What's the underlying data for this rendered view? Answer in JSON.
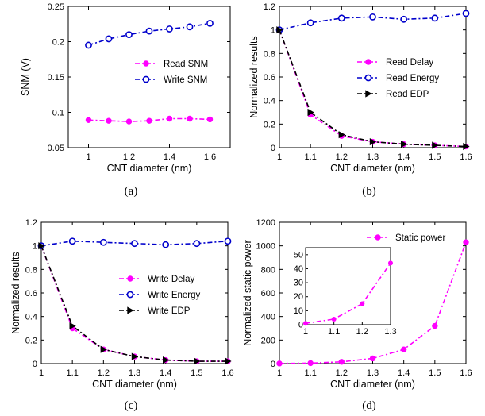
{
  "chart_data": [
    {
      "type": "line",
      "caption": "(a)",
      "xlabel": "CNT diameter (nm)",
      "ylabel": "SNM (V)",
      "xlim": [
        0.9,
        1.7
      ],
      "ylim": [
        0.05,
        0.25
      ],
      "xticks": [
        1,
        1.2,
        1.4,
        1.6
      ],
      "yticks": [
        0.05,
        0.1,
        0.15,
        0.2,
        0.25
      ],
      "ytick_labels": [
        "0.05",
        "0.1",
        "0.15",
        "0.2",
        "0.25"
      ],
      "grid": false,
      "legend": "center-right",
      "x": [
        1.0,
        1.1,
        1.2,
        1.3,
        1.4,
        1.5,
        1.6
      ],
      "series": [
        {
          "name": "Read SNM",
          "color": "#ff00ff",
          "marker": "dot",
          "values": [
            0.089,
            0.088,
            0.087,
            0.088,
            0.091,
            0.091,
            0.09
          ]
        },
        {
          "name": "Write SNM",
          "color": "#0000cc",
          "marker": "circle",
          "values": [
            0.195,
            0.204,
            0.21,
            0.215,
            0.218,
            0.221,
            0.226
          ]
        }
      ]
    },
    {
      "type": "line",
      "caption": "(b)",
      "xlabel": "CNT diameter (nm)",
      "ylabel": "Normalized results",
      "xlim": [
        1.0,
        1.6
      ],
      "ylim": [
        0,
        1.2
      ],
      "xticks": [
        1,
        1.1,
        1.2,
        1.3,
        1.4,
        1.5,
        1.6
      ],
      "yticks": [
        0,
        0.2,
        0.4,
        0.6,
        0.8,
        1,
        1.2
      ],
      "ytick_labels": [
        "0",
        "0.2",
        "0.4",
        "0.6",
        "0.8",
        "1",
        "1.2"
      ],
      "grid": false,
      "legend": "center-right",
      "x": [
        1.0,
        1.1,
        1.2,
        1.3,
        1.4,
        1.5,
        1.6
      ],
      "series": [
        {
          "name": "Read Delay",
          "color": "#ff00ff",
          "marker": "dot",
          "values": [
            1.0,
            0.28,
            0.1,
            0.05,
            0.03,
            0.02,
            0.01
          ]
        },
        {
          "name": "Read Energy",
          "color": "#0000cc",
          "marker": "circle",
          "values": [
            1.0,
            1.06,
            1.1,
            1.11,
            1.09,
            1.1,
            1.14
          ]
        },
        {
          "name": "Read EDP",
          "color": "#000000",
          "marker": "triangle",
          "values": [
            1.0,
            0.3,
            0.11,
            0.05,
            0.03,
            0.02,
            0.01
          ]
        }
      ]
    },
    {
      "type": "line",
      "caption": "(c)",
      "xlabel": "CNT diameter (nm)",
      "ylabel": "Normalized results",
      "xlim": [
        1.0,
        1.6
      ],
      "ylim": [
        0,
        1.2
      ],
      "xticks": [
        1,
        1.1,
        1.2,
        1.3,
        1.4,
        1.5,
        1.6
      ],
      "yticks": [
        0,
        0.2,
        0.4,
        0.6,
        0.8,
        1,
        1.2
      ],
      "ytick_labels": [
        "0",
        "0.2",
        "0.4",
        "0.6",
        "0.8",
        "1",
        "1.2"
      ],
      "grid": false,
      "legend": "center-right",
      "x": [
        1.0,
        1.1,
        1.2,
        1.3,
        1.4,
        1.5,
        1.6
      ],
      "series": [
        {
          "name": "Write Delay",
          "color": "#ff00ff",
          "marker": "dot",
          "values": [
            1.0,
            0.3,
            0.12,
            0.06,
            0.03,
            0.02,
            0.02
          ]
        },
        {
          "name": "Write Energy",
          "color": "#0000cc",
          "marker": "circle",
          "values": [
            1.0,
            1.04,
            1.03,
            1.02,
            1.01,
            1.02,
            1.04
          ]
        },
        {
          "name": "Write EDP",
          "color": "#000000",
          "marker": "triangle",
          "values": [
            1.0,
            0.32,
            0.12,
            0.06,
            0.03,
            0.02,
            0.02
          ]
        }
      ]
    },
    {
      "type": "line",
      "caption": "(d)",
      "xlabel": "CNT diameter (nm)",
      "ylabel": "Normalized static power",
      "xlim": [
        1.0,
        1.6
      ],
      "ylim": [
        0,
        1200
      ],
      "xticks": [
        1,
        1.1,
        1.2,
        1.3,
        1.4,
        1.5,
        1.6
      ],
      "yticks": [
        0,
        200,
        400,
        600,
        800,
        1000,
        1200
      ],
      "ytick_labels": [
        "0",
        "200",
        "400",
        "600",
        "800",
        "1000",
        "1200"
      ],
      "grid": false,
      "legend": "top-right",
      "x": [
        1.0,
        1.1,
        1.2,
        1.3,
        1.4,
        1.5,
        1.6
      ],
      "series": [
        {
          "name": "Static power",
          "color": "#ff00ff",
          "marker": "dot",
          "values": [
            1,
            4,
            15,
            44,
            120,
            320,
            1030
          ]
        }
      ],
      "inset": {
        "xlim": [
          1.0,
          1.3
        ],
        "ylim": [
          0,
          55
        ],
        "xticks": [
          1,
          1.1,
          1.2,
          1.3
        ],
        "yticks": [
          0,
          10,
          20,
          30,
          40,
          50
        ],
        "x": [
          1.0,
          1.1,
          1.2,
          1.3
        ],
        "values": [
          1,
          4,
          15,
          44
        ],
        "color": "#ff00ff"
      }
    }
  ]
}
